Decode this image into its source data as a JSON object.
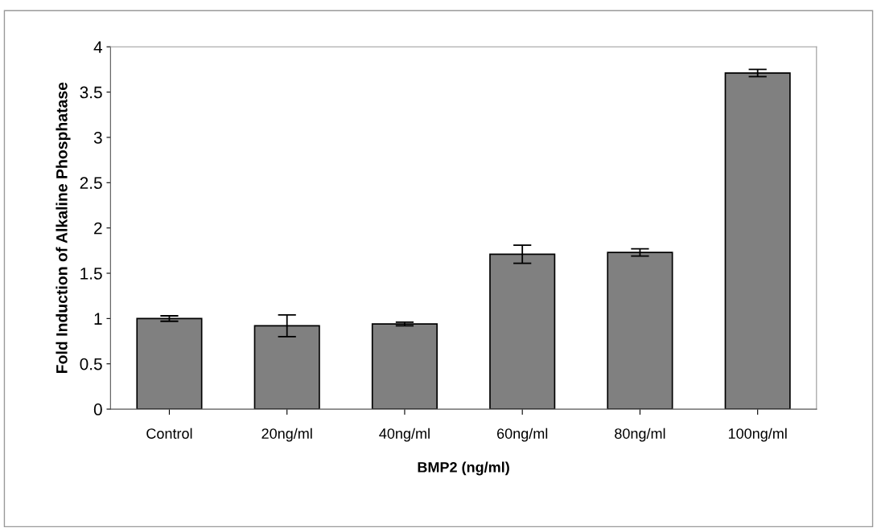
{
  "chart_data": {
    "type": "bar",
    "xlabel": "BMP2 (ng/ml)",
    "ylabel": "Fold Induction of Alkaline Phosphatase",
    "categories": [
      "Control",
      "20ng/ml",
      "40ng/ml",
      "60ng/ml",
      "80ng/ml",
      "100ng/ml"
    ],
    "values": [
      1.0,
      0.92,
      0.94,
      1.71,
      1.73,
      3.71
    ],
    "errors": [
      0.03,
      0.12,
      0.02,
      0.1,
      0.04,
      0.04
    ],
    "color": "#808080",
    "ylim": [
      0,
      4
    ],
    "yticks": [
      0,
      0.5,
      1,
      1.5,
      2,
      2.5,
      3,
      3.5,
      4
    ],
    "grid": false
  }
}
